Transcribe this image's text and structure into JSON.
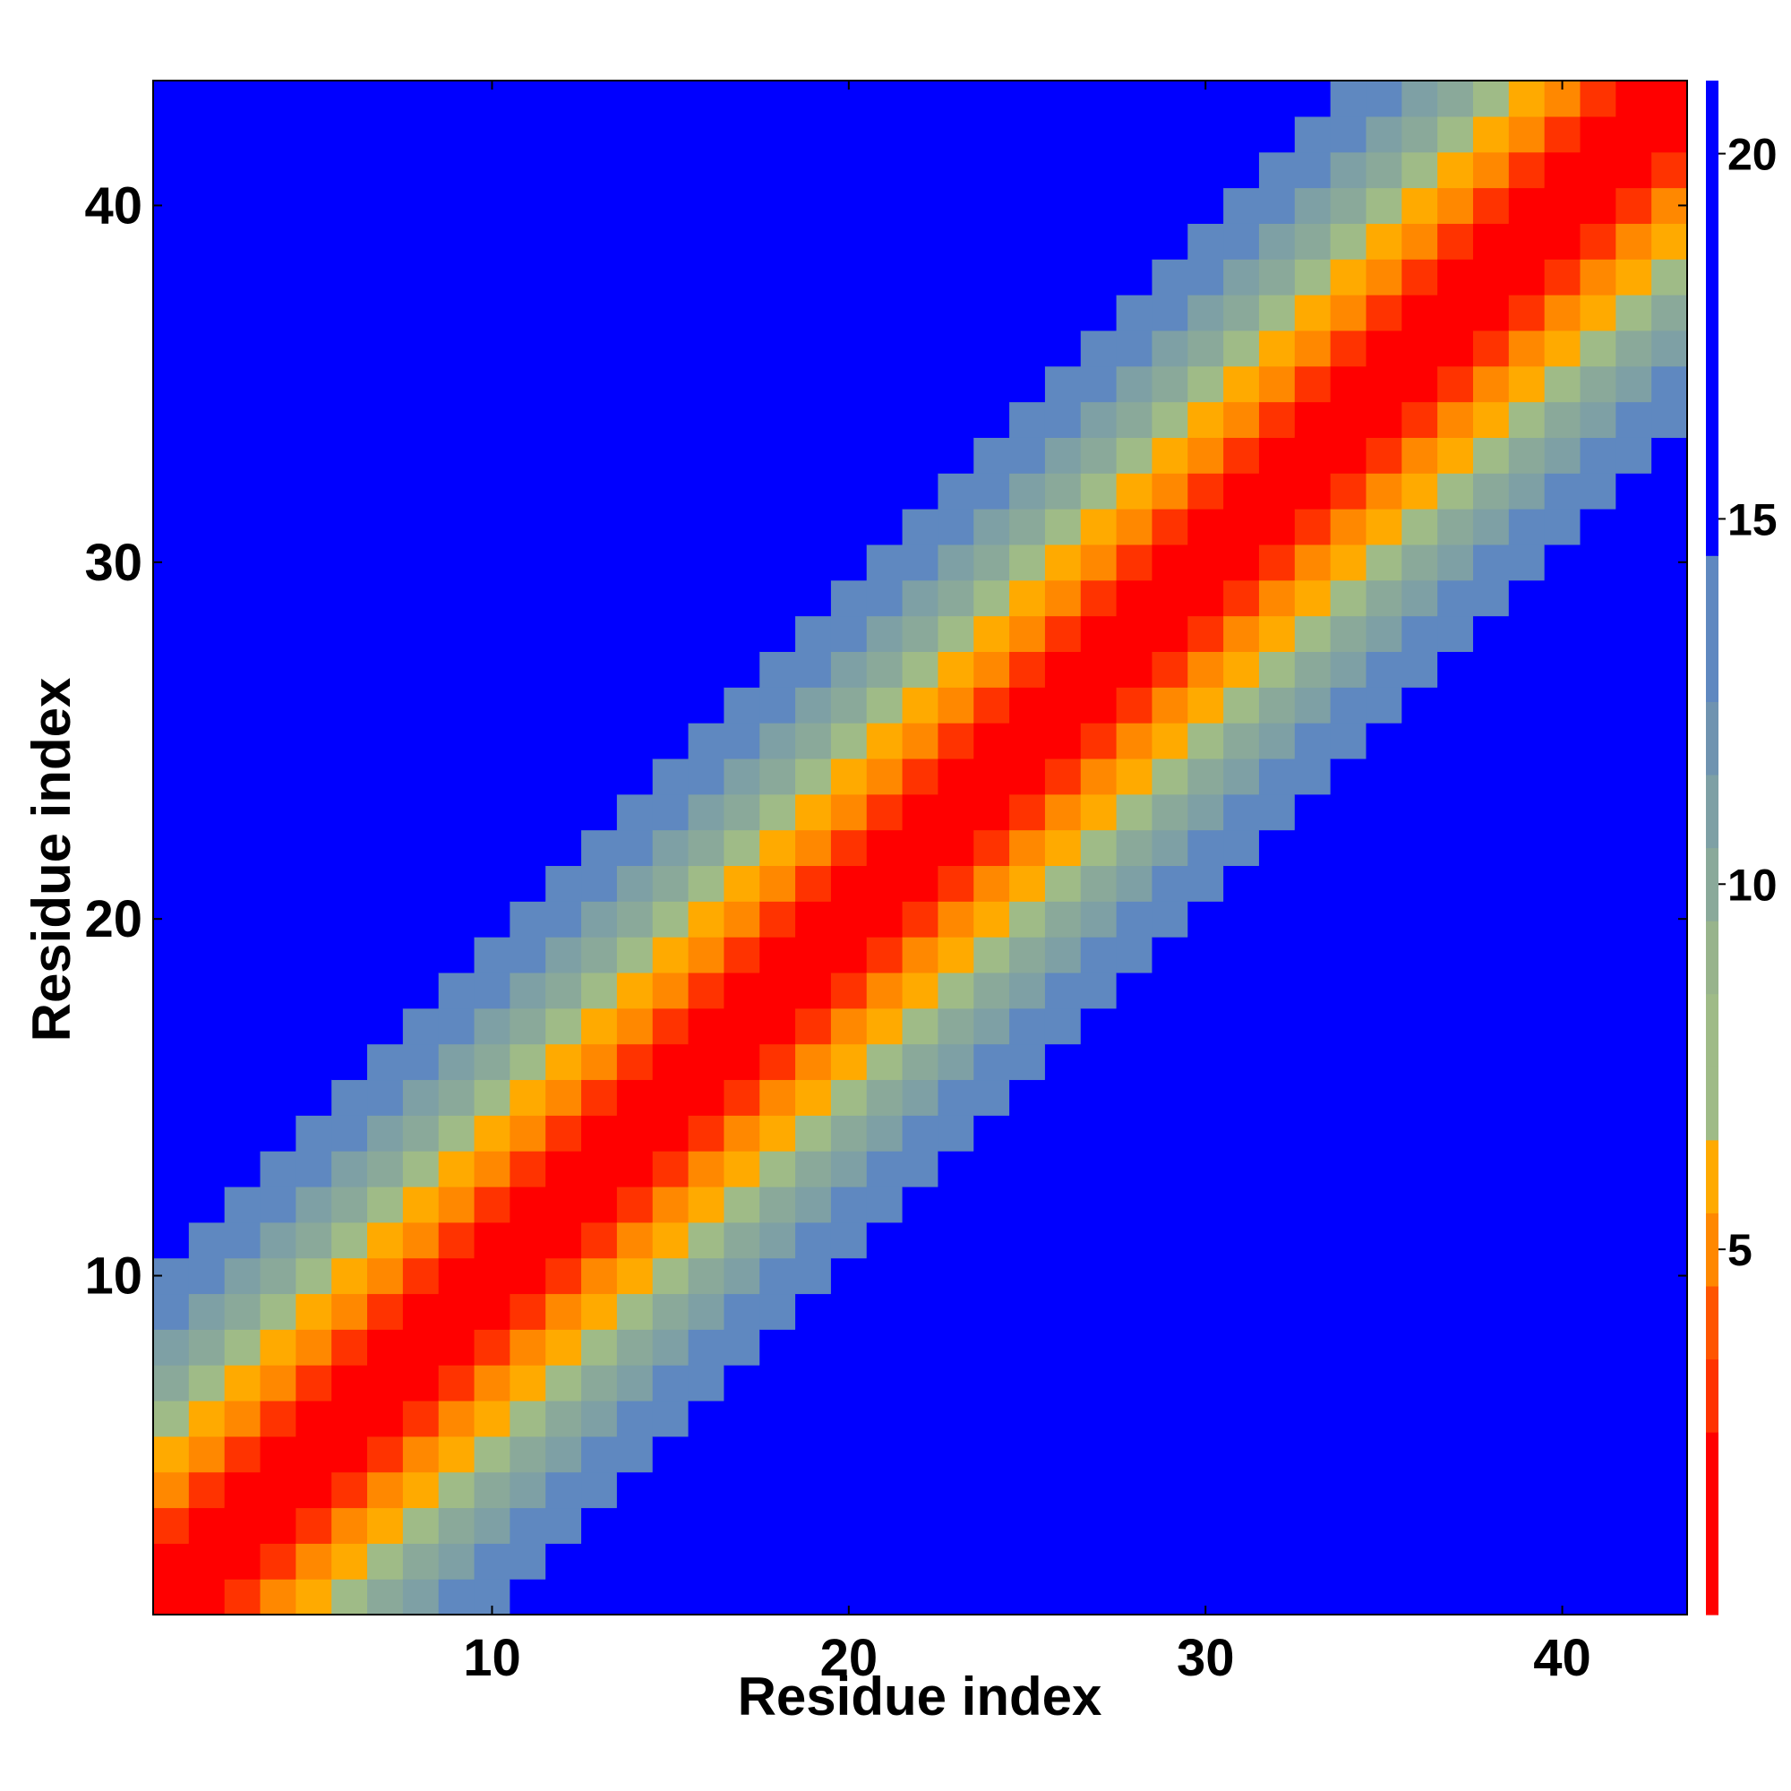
{
  "chart_data": {
    "type": "heatmap",
    "title": "",
    "xlabel": "Residue index",
    "ylabel": "Residue index",
    "n": 43,
    "x_range": [
      1,
      43
    ],
    "y_range": [
      1,
      43
    ],
    "x_ticks": [
      10,
      20,
      30,
      40
    ],
    "y_ticks": [
      10,
      20,
      30,
      40
    ],
    "colorbar": {
      "ticks": [
        5,
        10,
        15,
        20
      ],
      "range": [
        0,
        21
      ],
      "colors": [
        "#ff0000",
        "#ff0000",
        "#ff3300",
        "#ff5500",
        "#ff8800",
        "#ffaa00",
        "#9fbb87",
        "#9fbb87",
        "#98b48c",
        "#8aa99a",
        "#7ea0a5",
        "#6f93b0",
        "#5f88c0",
        "#0000ff"
      ],
      "level_edges": [
        0,
        1.5,
        2.5,
        3.5,
        4.5,
        5.5,
        6.5,
        7.5,
        8.5,
        9.5,
        10.5,
        11.5,
        12.5,
        14.5,
        21
      ],
      "legend_placement": "right"
    },
    "pattern": "symmetric distance map: values rise from ~0 on the main diagonal (j = i) to >20 far from it; bands: 0-2 red, 3 dark orange, 4 orange, 5 light orange, 6-12 green to grey-blue, >=13 blue",
    "off_diagonal_value_rule": "value(i,j) = 1.6 * |i - j|",
    "grid": false
  }
}
